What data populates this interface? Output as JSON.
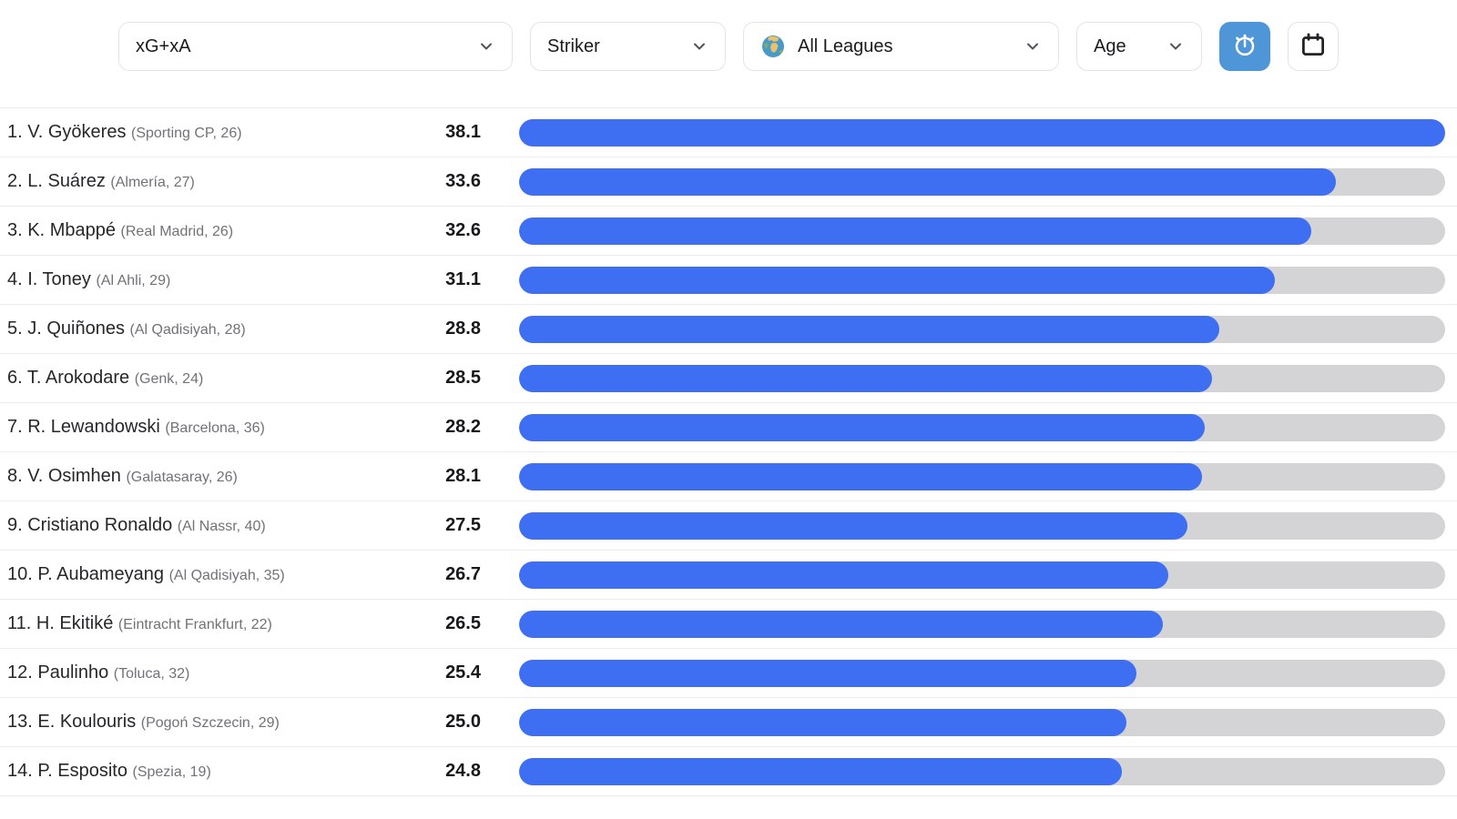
{
  "toolbar": {
    "metric_dropdown": {
      "value": "xG+xA"
    },
    "position_dropdown": {
      "value": "Striker"
    },
    "league_dropdown": {
      "value": "All Leagues",
      "icon": "globe-icon"
    },
    "age_dropdown": {
      "value": "Age"
    },
    "timer_button": {
      "icon": "stopwatch-icon"
    },
    "calendar_button": {
      "icon": "calendar-icon"
    }
  },
  "colors": {
    "bar_fill": "#3E6FF2",
    "bar_track": "#D4D4D6",
    "accent_button": "#4E96D7",
    "row_separator": "#ECECEE",
    "control_border": "#E4E4E7",
    "name_text": "#27272A",
    "club_text": "#71717A",
    "value_text": "#18181B"
  },
  "players": [
    {
      "rank": 1,
      "name": "V. Gyökeres",
      "club": "Sporting CP",
      "age": 26,
      "value": "38.1"
    },
    {
      "rank": 2,
      "name": "L. Suárez",
      "club": "Almería",
      "age": 27,
      "value": "33.6"
    },
    {
      "rank": 3,
      "name": "K. Mbappé",
      "club": "Real Madrid",
      "age": 26,
      "value": "32.6"
    },
    {
      "rank": 4,
      "name": "I. Toney",
      "club": "Al Ahli",
      "age": 29,
      "value": "31.1"
    },
    {
      "rank": 5,
      "name": "J. Quiñones",
      "club": "Al Qadisiyah",
      "age": 28,
      "value": "28.8"
    },
    {
      "rank": 6,
      "name": "T. Arokodare",
      "club": "Genk",
      "age": 24,
      "value": "28.5"
    },
    {
      "rank": 7,
      "name": "R. Lewandowski",
      "club": "Barcelona",
      "age": 36,
      "value": "28.2"
    },
    {
      "rank": 8,
      "name": "V. Osimhen",
      "club": "Galatasaray",
      "age": 26,
      "value": "28.1"
    },
    {
      "rank": 9,
      "name": "Cristiano Ronaldo",
      "club": "Al Nassr",
      "age": 40,
      "value": "27.5"
    },
    {
      "rank": 10,
      "name": "P. Aubameyang",
      "club": "Al Qadisiyah",
      "age": 35,
      "value": "26.7"
    },
    {
      "rank": 11,
      "name": "H. Ekitiké",
      "club": "Eintracht Frankfurt",
      "age": 22,
      "value": "26.5"
    },
    {
      "rank": 12,
      "name": "Paulinho",
      "club": "Toluca",
      "age": 32,
      "value": "25.4"
    },
    {
      "rank": 13,
      "name": "E. Koulouris",
      "club": "Pogoń Szczecin",
      "age": 29,
      "value": "25.0"
    },
    {
      "rank": 14,
      "name": "P. Esposito",
      "club": "Spezia",
      "age": 19,
      "value": "24.8"
    }
  ],
  "chart_data": {
    "type": "bar",
    "title": "xG+xA — Striker — All Leagues",
    "orientation": "horizontal",
    "categories": [
      "V. Gyökeres (Sporting CP, 26)",
      "L. Suárez (Almería, 27)",
      "K. Mbappé (Real Madrid, 26)",
      "I. Toney (Al Ahli, 29)",
      "J. Quiñones (Al Qadisiyah, 28)",
      "T. Arokodare (Genk, 24)",
      "R. Lewandowski (Barcelona, 36)",
      "V. Osimhen (Galatasaray, 26)",
      "Cristiano Ronaldo (Al Nassr, 40)",
      "P. Aubameyang (Al Qadisiyah, 35)",
      "H. Ekitiké (Eintracht Frankfurt, 22)",
      "Paulinho (Toluca, 32)",
      "E. Koulouris (Pogoń Szczecin, 29)",
      "P. Esposito (Spezia, 19)"
    ],
    "values": [
      38.1,
      33.6,
      32.6,
      31.1,
      28.8,
      28.5,
      28.2,
      28.1,
      27.5,
      26.7,
      26.5,
      25.4,
      25.0,
      24.8
    ],
    "xlabel": "",
    "ylabel": "",
    "xlim": [
      0,
      38.1
    ],
    "grid": false,
    "legend": false,
    "bar_color": "#3E6FF2",
    "track_color": "#D4D4D6"
  }
}
